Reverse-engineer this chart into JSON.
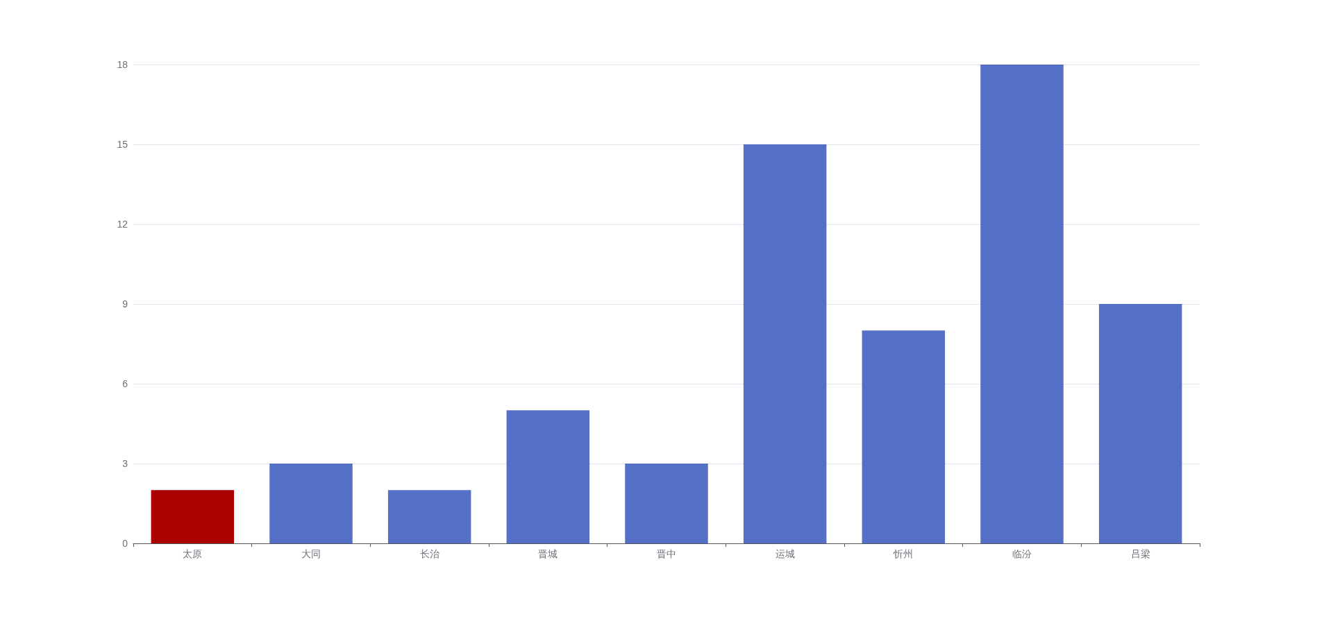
{
  "chart_data": {
    "type": "bar",
    "categories": [
      "太原",
      "大同",
      "长治",
      "晋城",
      "晋中",
      "运城",
      "忻州",
      "临汾",
      "吕梁"
    ],
    "values": [
      2,
      3,
      2,
      5,
      3,
      15,
      8,
      18,
      9
    ],
    "colors": [
      "#aa0000",
      "#5470c6",
      "#5470c6",
      "#5470c6",
      "#5470c6",
      "#5470c6",
      "#5470c6",
      "#5470c6",
      "#5470c6"
    ],
    "ylim": [
      0,
      18
    ],
    "yticks": [
      0,
      3,
      6,
      9,
      12,
      15,
      18
    ],
    "grid": "y"
  }
}
